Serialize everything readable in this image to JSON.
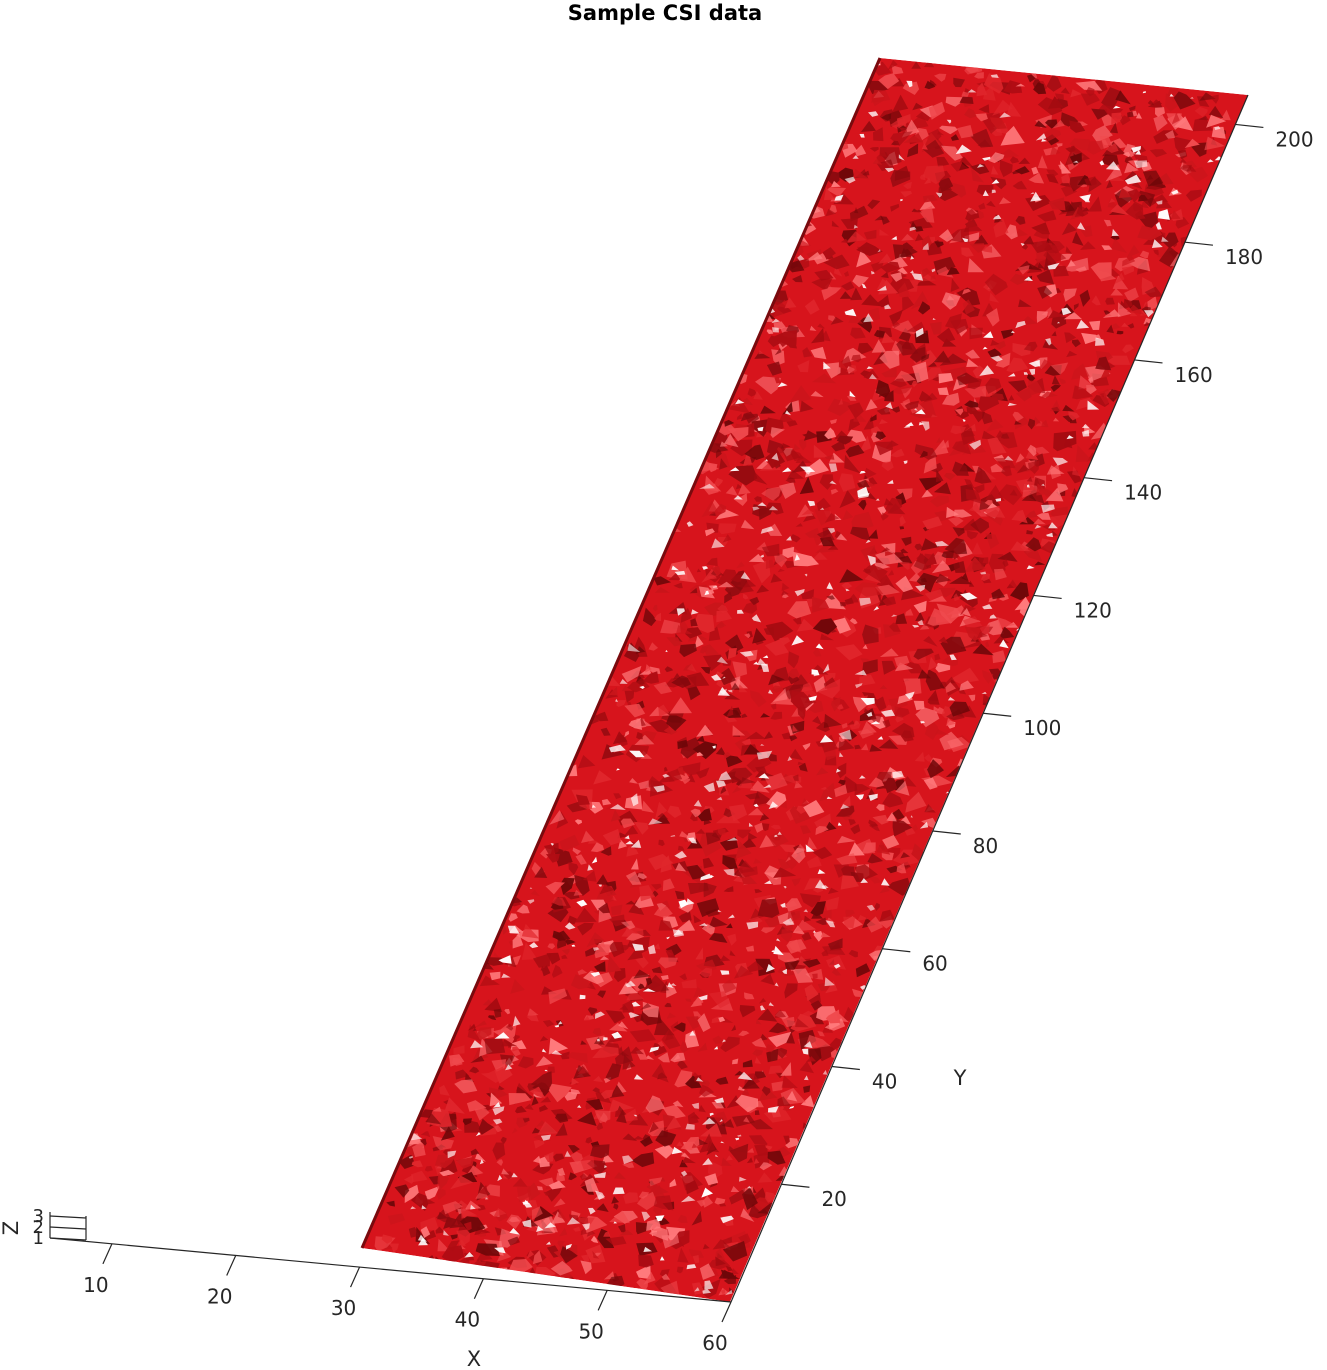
{
  "chart_data": {
    "type": "surface",
    "title": "Sample CSI data",
    "xlabel": "X",
    "ylabel": "Y",
    "zlabel": "Z",
    "x_ticks": [
      10,
      20,
      30,
      40,
      50,
      60
    ],
    "y_ticks": [
      20,
      40,
      60,
      80,
      100,
      120,
      140,
      160,
      180,
      200
    ],
    "z_ticks": [
      1,
      2,
      3
    ],
    "xlim": [
      5,
      60
    ],
    "ylim": [
      0,
      205
    ],
    "zlim": [
      1,
      3
    ],
    "x_data_range": [
      30,
      60
    ],
    "y_data_range": [
      1,
      205
    ],
    "grid": false,
    "surface_color": "#d7141c",
    "surface_dark_color": "#7a0a0e",
    "surface_light_color": "#ffffff"
  }
}
